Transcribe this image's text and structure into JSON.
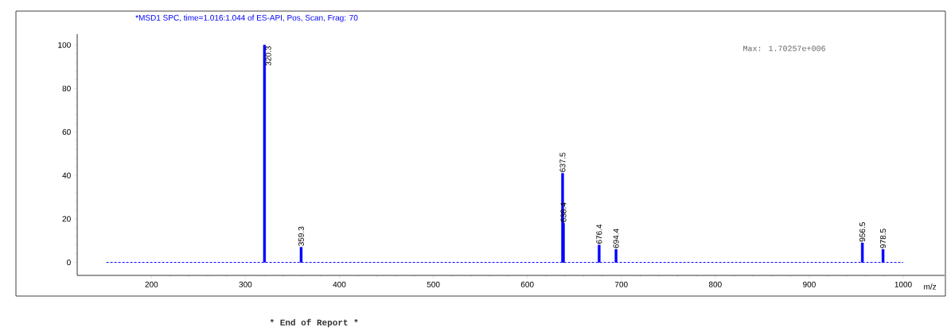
{
  "chart_data": {
    "type": "bar",
    "title": "*MSD1 SPC, time=1.016:1.044 of ES-API, Pos, Scan, Frag: 70",
    "xlabel": "m/z",
    "annotations": [
      "Max: 1.70257e+006",
      "*** End of Report ***",
      {
        "text": "320.3",
        "x": 320.3,
        "y": 100
      },
      {
        "text": "359.3",
        "x": 359.3,
        "y": 7
      },
      {
        "text": "637.5",
        "x": 637.5,
        "y": 41
      },
      {
        "text": "638.4",
        "x": 638.4,
        "y": 18
      },
      {
        "text": "676.4",
        "x": 676.4,
        "y": 8
      },
      {
        "text": "694.4",
        "x": 694.4,
        "y": 6
      },
      {
        "text": "956.5",
        "x": 956.5,
        "y": 9
      },
      {
        "text": "978.5",
        "x": 978.5,
        "y": 6
      }
    ],
    "x": [
      320.3,
      359.3,
      637.5,
      638.4,
      676.4,
      694.4,
      956.5,
      978.5
    ],
    "xlim": [
      121,
      1044
    ],
    "ylim": [
      -6,
      105
    ],
    "xticks": [
      200,
      300,
      400,
      500,
      600,
      700,
      800,
      900,
      1000
    ],
    "yticks": [
      0,
      20,
      40,
      60,
      80,
      100
    ],
    "series": [
      {
        "color": "#0000ff",
        "values": [
          100,
          7,
          41,
          18,
          8,
          6,
          9,
          6
        ]
      },
      {
        "type": "line",
        "x": [
          152,
          1000
        ],
        "values": [
          0,
          0
        ],
        "color": "#0000ff",
        "line_style": "dashed"
      }
    ]
  }
}
